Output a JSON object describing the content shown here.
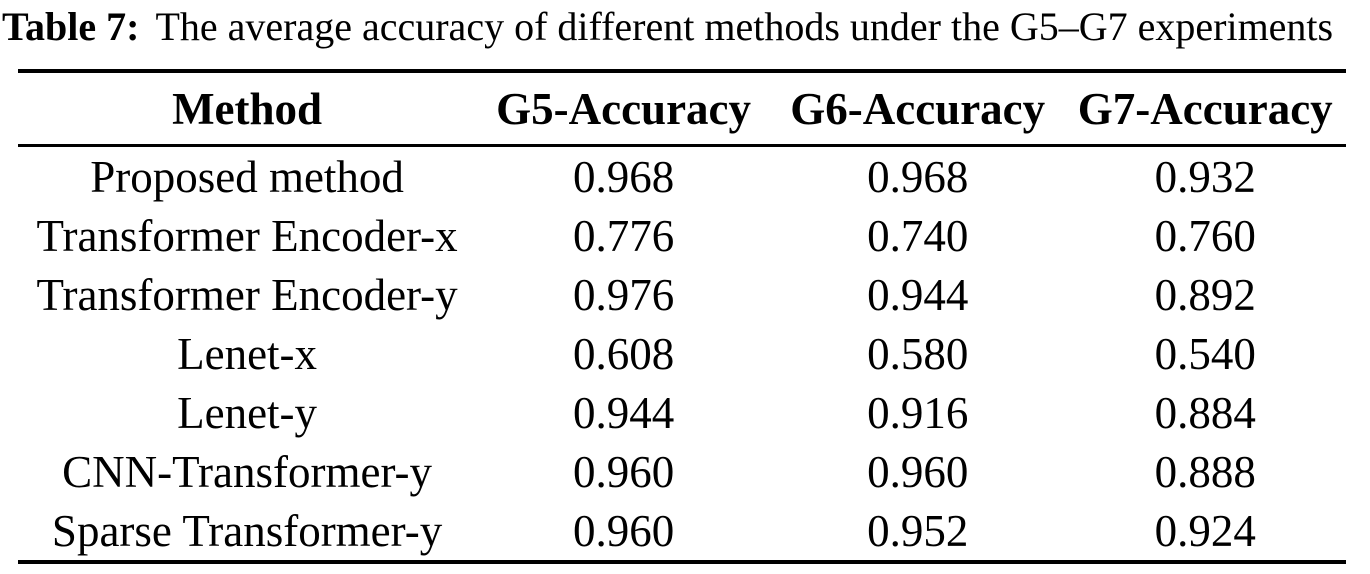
{
  "caption": {
    "label": "Table 7:",
    "text": "The average accuracy of different methods under the G5–G7 experiments"
  },
  "table": {
    "headers": [
      "Method",
      "G5-Accuracy",
      "G6-Accuracy",
      "G7-Accuracy"
    ],
    "rows": [
      [
        "Proposed method",
        "0.968",
        "0.968",
        "0.932"
      ],
      [
        "Transformer Encoder-x",
        "0.776",
        "0.740",
        "0.760"
      ],
      [
        "Transformer Encoder-y",
        "0.976",
        "0.944",
        "0.892"
      ],
      [
        "Lenet-x",
        "0.608",
        "0.580",
        "0.540"
      ],
      [
        "Lenet-y",
        "0.944",
        "0.916",
        "0.884"
      ],
      [
        "CNN-Transformer-y",
        "0.960",
        "0.960",
        "0.888"
      ],
      [
        "Sparse Transformer-y",
        "0.960",
        "0.952",
        "0.924"
      ]
    ]
  },
  "colors": {
    "text": "#000000",
    "background": "#ffffff",
    "rule": "#000000"
  },
  "chart_data": {
    "type": "table",
    "title": "Table 7: The average accuracy of different methods under the G5–G7 experiments",
    "columns": [
      "Method",
      "G5-Accuracy",
      "G6-Accuracy",
      "G7-Accuracy"
    ],
    "rows": [
      {
        "method": "Proposed method",
        "g5_accuracy": 0.968,
        "g6_accuracy": 0.968,
        "g7_accuracy": 0.932
      },
      {
        "method": "Transformer Encoder-x",
        "g5_accuracy": 0.776,
        "g6_accuracy": 0.74,
        "g7_accuracy": 0.76
      },
      {
        "method": "Transformer Encoder-y",
        "g5_accuracy": 0.976,
        "g6_accuracy": 0.944,
        "g7_accuracy": 0.892
      },
      {
        "method": "Lenet-x",
        "g5_accuracy": 0.608,
        "g6_accuracy": 0.58,
        "g7_accuracy": 0.54
      },
      {
        "method": "Lenet-y",
        "g5_accuracy": 0.944,
        "g6_accuracy": 0.916,
        "g7_accuracy": 0.884
      },
      {
        "method": "CNN-Transformer-y",
        "g5_accuracy": 0.96,
        "g6_accuracy": 0.96,
        "g7_accuracy": 0.888
      },
      {
        "method": "Sparse Transformer-y",
        "g5_accuracy": 0.96,
        "g6_accuracy": 0.952,
        "g7_accuracy": 0.924
      }
    ]
  }
}
